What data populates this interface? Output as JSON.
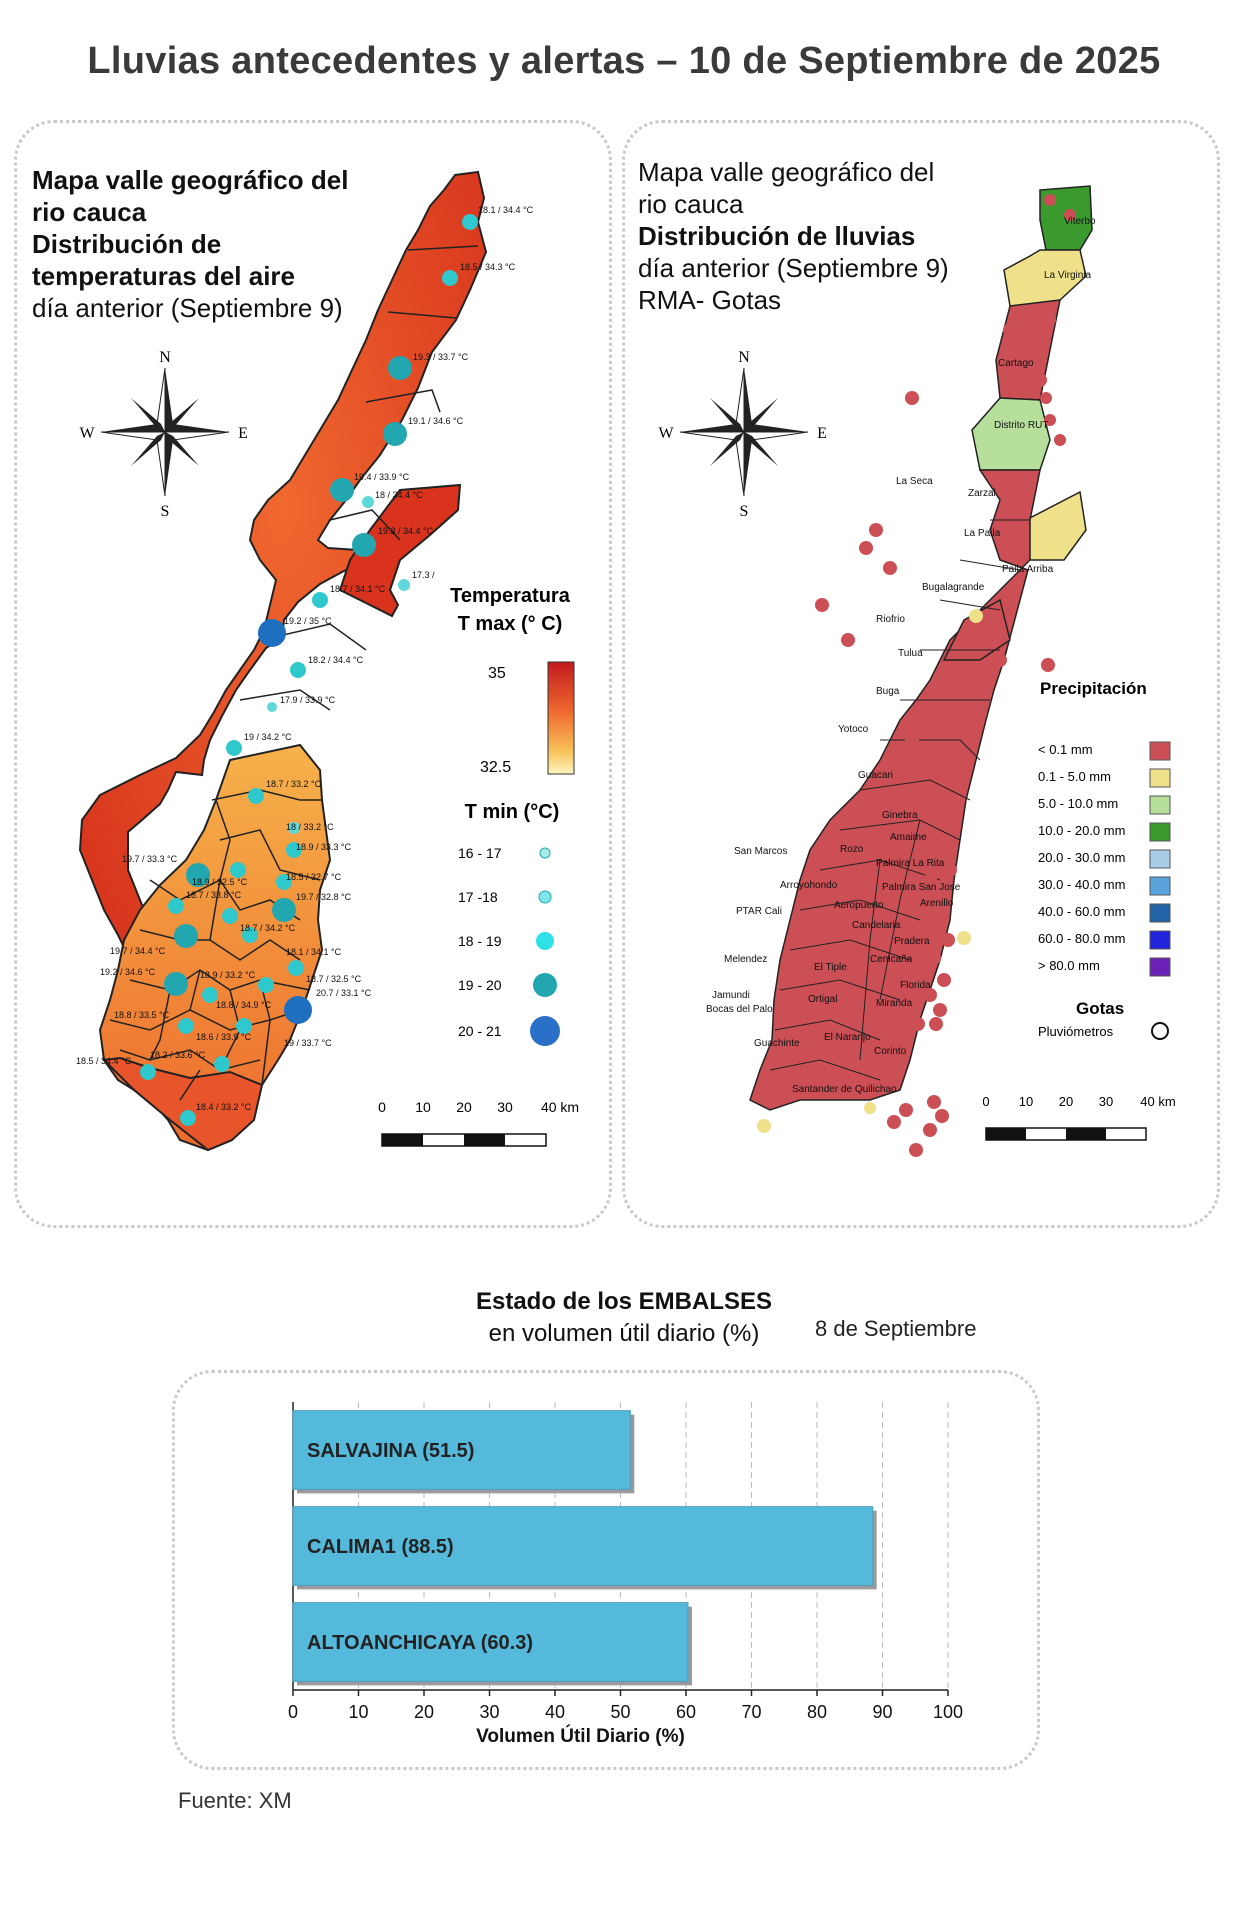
{
  "title": "Lluvias antecedentes y alertas – 10 de Septiembre de 2025",
  "left_map": {
    "title_bold": [
      "Mapa valle geográfico del",
      "rio cauca",
      "Distribución de",
      "temperaturas del aire"
    ],
    "title_normal": [
      "día anterior (Septiembre 9)"
    ],
    "compass": {
      "n": "N",
      "s": "S",
      "e": "E",
      "w": "W"
    },
    "legend_tmax_title": [
      "Temperatura",
      "T max (° C)"
    ],
    "legend_tmax_max": "35",
    "legend_tmax_min": "32.5",
    "legend_tmin_title": "T min (°C)",
    "legend_tmin_items": [
      "16 - 17",
      "17 -18",
      "18 - 19",
      "19 - 20",
      "20 - 21"
    ],
    "scale_labels": [
      "0",
      "10",
      "20",
      "30",
      "40 km"
    ],
    "stations": [
      "18.1 / 34.4 °C",
      "18.5 / 34.3 °C",
      "19.3 / 33.7 °C",
      "19.1 / 34.6 °C",
      "19.4 / 33.9 °C",
      "18 / 34.4 °C",
      "19.3 / 34.4 °C",
      "17.3 /",
      "18.7 / 34.1 °C",
      "19.2 / 35 °C",
      "18.2 / 34.4 °C",
      "17.9 / 33.9 °C",
      "19 / 34.2 °C",
      "18.7 / 33.2 °C",
      "18 / 33.2 °C",
      "18.9 / 33.3 °C",
      "19.7 / 33.3 °C",
      "18.9 / 32.5 °C",
      "18.7 / 33.8 °C",
      "18.5 / 32.7 °C",
      "19.7 / 32.8 °C",
      "18.7 / 34.2 °C",
      "19.7 / 34.4 °C",
      "18.1 / 34.1 °C",
      "19.2 / 34.6 °C",
      "18.9 / 33.2 °C",
      "18.7 / 32.5 °C",
      "20.7 / 33.1 °C",
      "18.8 / 34.9 °C",
      "18.8 / 33.5 °C",
      "18.6 / 33.9 °C",
      "19 / 33.7 °C",
      "18.2 / 33.6 °C",
      "18.5 / 34.4 °C",
      "18.4 / 33.2 °C"
    ]
  },
  "right_map": {
    "title_bold": [
      "Mapa valle geográfico del",
      "rio cauca",
      "Distribución de lluvias"
    ],
    "title_normal": [
      "día anterior (Septiembre 9)",
      "RMA- Gotas"
    ],
    "compass": {
      "n": "N",
      "s": "S",
      "e": "E",
      "w": "W"
    },
    "legend_title": "Precipitación",
    "legend_items": [
      {
        "label": "< 0.1 mm",
        "color": "#cc4f55"
      },
      {
        "label": "0.1 - 5.0 mm",
        "color": "#efe08a"
      },
      {
        "label": "5.0 - 10.0 mm",
        "color": "#b6df9c"
      },
      {
        "label": "10.0 - 20.0 mm",
        "color": "#3a9a2e"
      },
      {
        "label": "20.0 - 30.0 mm",
        "color": "#a9cde6"
      },
      {
        "label": "30.0 - 40.0 mm",
        "color": "#5aa3dd"
      },
      {
        "label": "40.0 - 60.0 mm",
        "color": "#2363a8"
      },
      {
        "label": "60.0 - 80.0 mm",
        "color": "#2222dd"
      },
      {
        "label": "> 80.0 mm",
        "color": "#6a22b8"
      }
    ],
    "gotas_title": "Gotas",
    "gotas_item": "Pluviómetros",
    "scale_labels": [
      "0",
      "10",
      "20",
      "30",
      "40 km"
    ],
    "places": [
      "Viterbo",
      "La Virginia",
      "Cartago",
      "Distrito RUT",
      "La Seca",
      "Zarzal",
      "La Paila",
      "Paila Arriba",
      "Bugalagrande",
      "Riofrio",
      "Tulua",
      "Buga",
      "Yotoco",
      "Guacari",
      "Ginebra",
      "Amaime",
      "San Marcos",
      "Rozo",
      "Palmira La Rita",
      "Arroyohondo",
      "Palmira San Jose",
      "Aeropuerto",
      "Arenillo",
      "PTAR Cali",
      "Candelaria",
      "Pradera",
      "Melendez",
      "El Tiple",
      "Cenicaña",
      "Jamundi",
      "Bocas del Palo",
      "Florida",
      "Ortigal",
      "Miranda",
      "El Naranjo",
      "Guachinte",
      "Corinto",
      "Santander de Quilichao"
    ]
  },
  "reservoirs": {
    "title": "Estado de los EMBALSES",
    "subtitle": "en volumen útil diario (%)",
    "date": "8 de Septiembre",
    "source": "Fuente: XM"
  },
  "chart_data": {
    "type": "bar",
    "orientation": "horizontal",
    "categories": [
      "SALVAJINA (51.5)",
      "CALIMA1 (88.5)",
      "ALTOANCHICAYA (60.3)"
    ],
    "values": [
      51.5,
      88.5,
      60.3
    ],
    "xlabel": "Volumen Útil Diario (%)",
    "ylabel": "",
    "xlim": [
      0,
      100
    ],
    "xticks": [
      "0",
      "10",
      "20",
      "30",
      "40",
      "50",
      "60",
      "70",
      "80",
      "90",
      "100"
    ],
    "bar_color": "#55b9dc",
    "grid": "vertical dashed"
  }
}
